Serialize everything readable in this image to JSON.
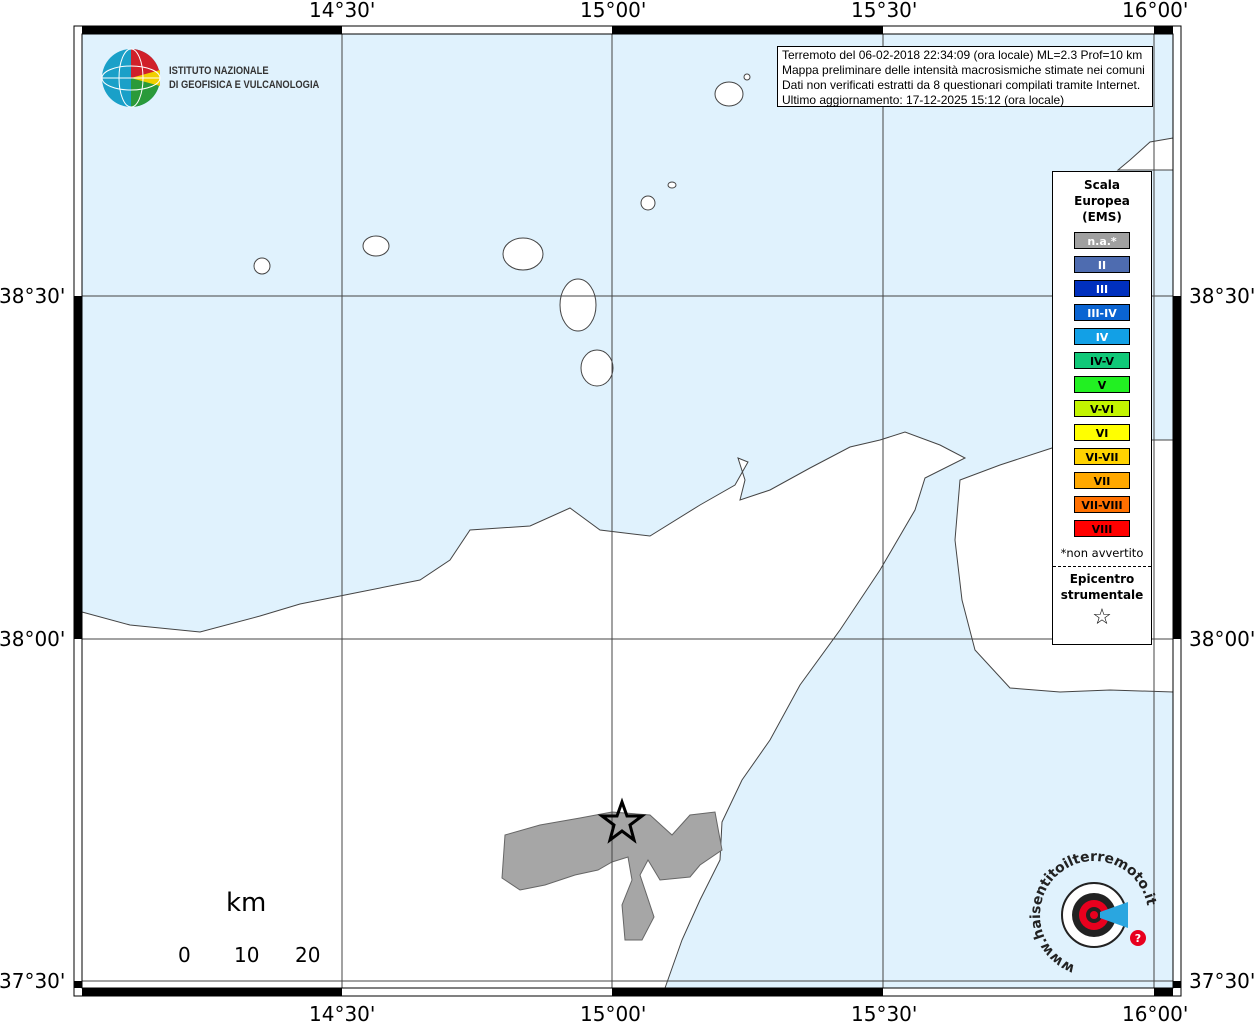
{
  "map": {
    "lon_labels": [
      "14°30'",
      "15°00'",
      "15°30'",
      "16°00'"
    ],
    "lat_labels": [
      "38°30'",
      "38°00'",
      "37°30'"
    ],
    "colors": {
      "sea": "#e0f2fd",
      "land": "#ffffff",
      "felt_area": "#a6a6a6"
    }
  },
  "logo": {
    "line1": "ISTITUTO NAZIONALE",
    "line2": "DI GEOFISICA E VULCANOLOGIA"
  },
  "info": {
    "lines": [
      "Terremoto del 06-02-2018 22:34:09 (ora locale) ML=2.3 Prof=10 km",
      "Mappa preliminare delle intensità macrosismiche stimate nei comuni",
      "Dati non verificati estratti da 8 questionari compilati tramite Internet.",
      "Ultimo aggiornamento: 17-12-2025 15:12 (ora locale)"
    ]
  },
  "legend": {
    "title": [
      "Scala",
      "Europea",
      "(EMS)"
    ],
    "items": [
      {
        "label": "n.a.*",
        "color": "#a0a0a0",
        "text": "#ffffff"
      },
      {
        "label": "II",
        "color": "#4e6cb0",
        "text": "#ffffff"
      },
      {
        "label": "III",
        "color": "#0030be",
        "text": "#ffffff"
      },
      {
        "label": "III-IV",
        "color": "#0a64d2",
        "text": "#ffffff"
      },
      {
        "label": "IV",
        "color": "#12a0e6",
        "text": "#ffffff"
      },
      {
        "label": "IV-V",
        "color": "#10c878",
        "text": "#000000"
      },
      {
        "label": "V",
        "color": "#22f022",
        "text": "#000000"
      },
      {
        "label": "V-VI",
        "color": "#c2f400",
        "text": "#000000"
      },
      {
        "label": "VI",
        "color": "#ffff00",
        "text": "#000000"
      },
      {
        "label": "VI-VII",
        "color": "#ffd200",
        "text": "#000000"
      },
      {
        "label": "VII",
        "color": "#ffa800",
        "text": "#000000"
      },
      {
        "label": "VII-VIII",
        "color": "#ff7000",
        "text": "#000000"
      },
      {
        "label": "VIII",
        "color": "#ff0000",
        "text": "#000000"
      }
    ],
    "note": "*non avvertito",
    "epicenter": [
      "Epicentro",
      "strumentale"
    ],
    "star": "☆"
  },
  "scale": {
    "unit": "km",
    "ticks": [
      "0",
      "10",
      "20"
    ]
  },
  "brand": {
    "text": "www.haisentitoilterremoto.it"
  }
}
